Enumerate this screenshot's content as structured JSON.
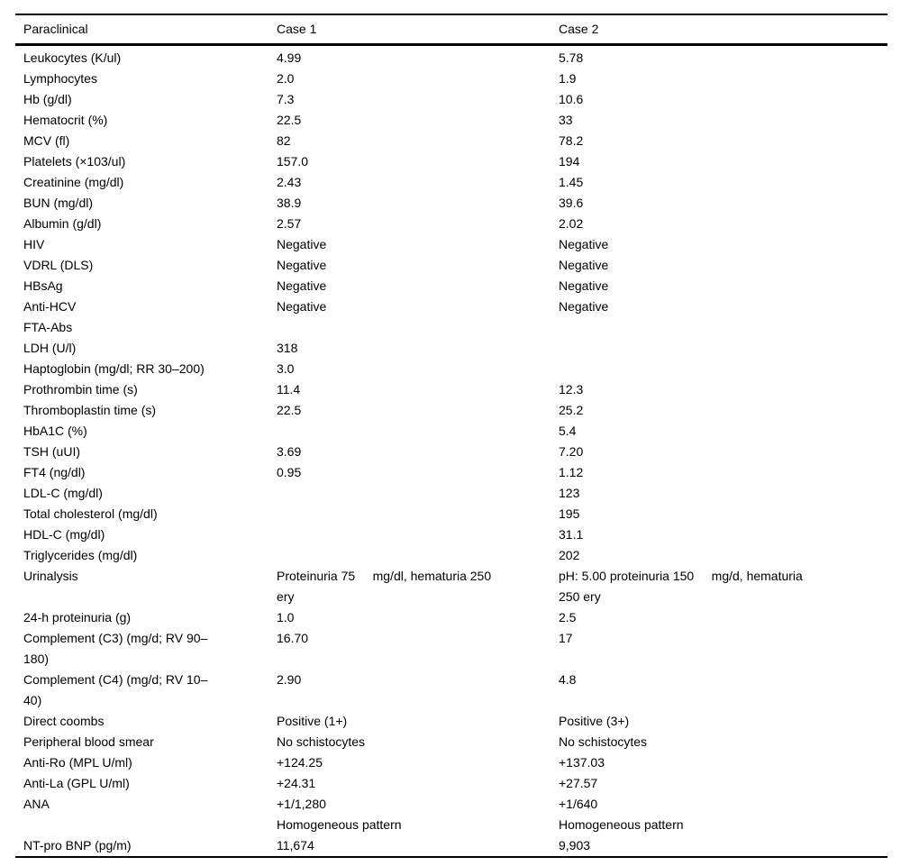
{
  "table": {
    "columns": [
      "Paraclinical",
      "Case 1",
      "Case 2"
    ],
    "rows": [
      {
        "label": "Leukocytes (K/ul)",
        "case1": "4.99",
        "case2": "5.78"
      },
      {
        "label": "Lymphocytes",
        "case1": "2.0",
        "case2": "1.9"
      },
      {
        "label": "Hb (g/dl)",
        "case1": "7.3",
        "case2": "10.6"
      },
      {
        "label": "Hematocrit (%)",
        "case1": "22.5",
        "case2": "33"
      },
      {
        "label": "MCV (fl)",
        "case1": "82",
        "case2": "78.2"
      },
      {
        "label": "Platelets (×103/ul)",
        "case1": "157.0",
        "case2": "194"
      },
      {
        "label": "Creatinine (mg/dl)",
        "case1": "2.43",
        "case2": "1.45"
      },
      {
        "label": "BUN (mg/dl)",
        "case1": "38.9",
        "case2": "39.6"
      },
      {
        "label": "Albumin (g/dl)",
        "case1": "2.57",
        "case2": "2.02"
      },
      {
        "label": "HIV",
        "case1": "Negative",
        "case2": "Negative"
      },
      {
        "label": "VDRL (DLS)",
        "case1": "Negative",
        "case2": "Negative"
      },
      {
        "label": "HBsAg",
        "case1": "Negative",
        "case2": "Negative"
      },
      {
        "label": "Anti-HCV",
        "case1": "Negative",
        "case2": "Negative"
      },
      {
        "label": "FTA-Abs",
        "case1": "",
        "case2": ""
      },
      {
        "label": "LDH (U/l)",
        "case1": "318",
        "case2": ""
      },
      {
        "label": "Haptoglobin (mg/dl; RR 30–200)",
        "case1": "3.0",
        "case2": ""
      },
      {
        "label": "Prothrombin time (s)",
        "case1": "11.4",
        "case2": "12.3"
      },
      {
        "label": "Thromboplastin time (s)",
        "case1": "22.5",
        "case2": "25.2"
      },
      {
        "label": "HbA1C (%)",
        "case1": "",
        "case2": "5.4"
      },
      {
        "label": "TSH (uUI)",
        "case1": "3.69",
        "case2": "7.20"
      },
      {
        "label": "FT4 (ng/dl)",
        "case1": "0.95",
        "case2": "1.12"
      },
      {
        "label": "LDL-C (mg/dl)",
        "case1": "",
        "case2": "123"
      },
      {
        "label": "Total cholesterol (mg/dl)",
        "case1": "",
        "case2": "195"
      },
      {
        "label": "HDL-C (mg/dl)",
        "case1": "",
        "case2": "31.1"
      },
      {
        "label": "Triglycerides (mg/dl)",
        "case1": "",
        "case2": "202"
      },
      {
        "label": "Urinalysis",
        "case1": "Proteinuria 75     mg/dl, hematuria 250\nery",
        "case2": "pH: 5.00 proteinuria 150     mg/d, hematuria\n250 ery"
      },
      {
        "label": "24-h proteinuria (g)",
        "case1": "1.0",
        "case2": "2.5"
      },
      {
        "label": "Complement (C3) (mg/d; RV 90–\n180)",
        "case1": "16.70",
        "case2": "17"
      },
      {
        "label": "Complement (C4) (mg/d; RV 10–\n40)",
        "case1": "2.90",
        "case2": "4.8"
      },
      {
        "label": "Direct coombs",
        "case1": "Positive (1+)",
        "case2": "Positive (3+)"
      },
      {
        "label": "Peripheral blood smear",
        "case1": "No schistocytes",
        "case2": "No schistocytes"
      },
      {
        "label": "Anti-Ro (MPL U/ml)",
        "case1": "+124.25",
        "case2": "+137.03"
      },
      {
        "label": "Anti-La (GPL U/ml)",
        "case1": "+24.31",
        "case2": "+27.57"
      },
      {
        "label": "ANA",
        "case1": "+1/1,280",
        "case2": "+1/640"
      },
      {
        "label": "",
        "case1": "Homogeneous pattern",
        "case2": "Homogeneous pattern"
      },
      {
        "label": "NT-pro BNP (pg/m)",
        "case1": "11,674",
        "case2": "9,903"
      }
    ]
  }
}
